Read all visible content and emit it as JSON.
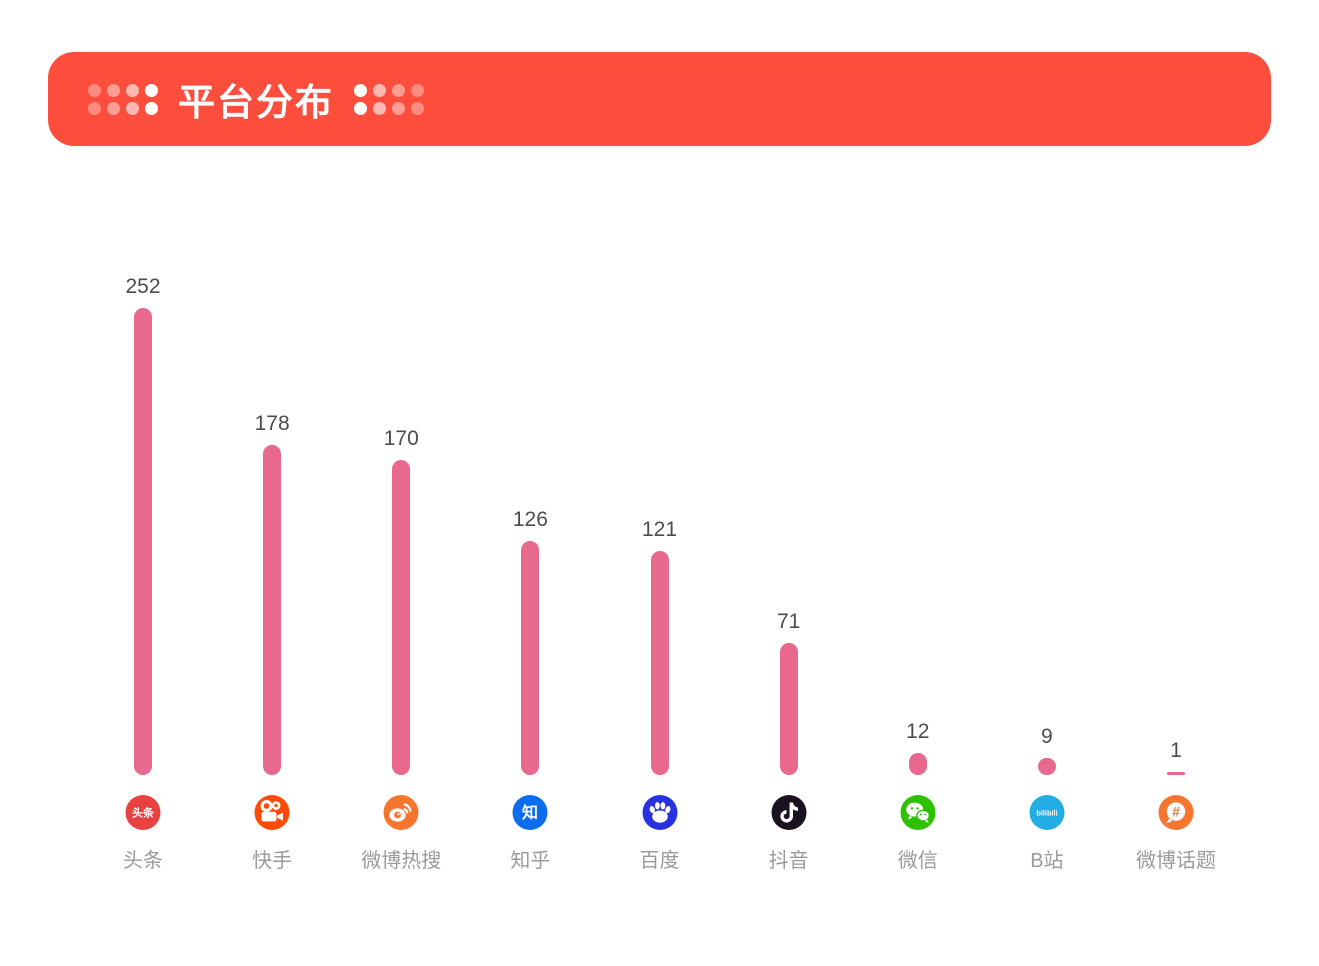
{
  "page": {
    "background": "#ffffff"
  },
  "header": {
    "title": "平台分布",
    "background": "#FD4E3D",
    "left_dots_opacity": [
      0.35,
      0.45,
      0.6,
      1
    ],
    "right_dots_opacity": [
      1,
      0.6,
      0.45,
      0.35
    ]
  },
  "chart_data": {
    "type": "bar",
    "title": "平台分布",
    "orientation": "vertical",
    "grid": false,
    "legend": false,
    "ylim": [
      0,
      252
    ],
    "bar_color": "#E8688E",
    "value_label_color": "#4C4C4C",
    "category_label_color": "#9B9B9B",
    "categories": [
      "头条",
      "快手",
      "微博热搜",
      "知乎",
      "百度",
      "抖音",
      "微信",
      "B站",
      "微博话题"
    ],
    "values": [
      252,
      178,
      170,
      126,
      121,
      71,
      12,
      9,
      1
    ],
    "platforms": [
      {
        "label": "头条",
        "value": 252,
        "icon": "toutiao-icon",
        "icon_bg": "#E94042",
        "icon_text": "头条"
      },
      {
        "label": "快手",
        "value": 178,
        "icon": "kuaishou-icon",
        "icon_bg": "#FE4A05",
        "icon_text": ""
      },
      {
        "label": "微博热搜",
        "value": 170,
        "icon": "weibo-icon",
        "icon_bg": "#F7752F",
        "icon_text": ""
      },
      {
        "label": "知乎",
        "value": 126,
        "icon": "zhihu-icon",
        "icon_bg": "#0B6CF0",
        "icon_text": "知"
      },
      {
        "label": "百度",
        "value": 121,
        "icon": "baidu-icon",
        "icon_bg": "#2932E1",
        "icon_text": ""
      },
      {
        "label": "抖音",
        "value": 71,
        "icon": "douyin-icon",
        "icon_bg": "#1A131F",
        "icon_text": ""
      },
      {
        "label": "微信",
        "value": 12,
        "icon": "wechat-icon",
        "icon_bg": "#2DC100",
        "icon_text": ""
      },
      {
        "label": "B站",
        "value": 9,
        "icon": "bilibili-icon",
        "icon_bg": "#23ADE5",
        "icon_text": "bilibili"
      },
      {
        "label": "微博话题",
        "value": 1,
        "icon": "weibo-topic-icon",
        "icon_bg": "#F7752F",
        "icon_text": "#"
      }
    ]
  }
}
